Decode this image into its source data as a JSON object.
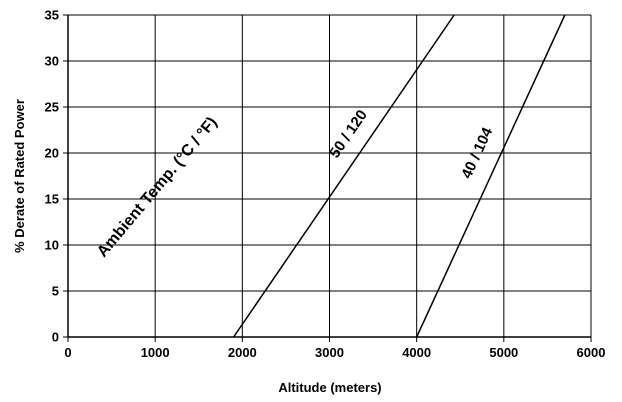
{
  "chart_data": {
    "type": "line",
    "title": "",
    "xlabel": "Altitude (meters)",
    "ylabel": "% Derate of Rated Power",
    "xlim": [
      0,
      6000
    ],
    "ylim": [
      0,
      35
    ],
    "xticks": [
      0,
      1000,
      2000,
      3000,
      4000,
      5000,
      6000
    ],
    "yticks": [
      0,
      5,
      10,
      15,
      20,
      25,
      30,
      35
    ],
    "grid": true,
    "legend": "none",
    "annotation": "Ambient Temp. (°C / °F)",
    "series": [
      {
        "name": "50 / 120",
        "x": [
          1900,
          4430
        ],
        "y": [
          0,
          35
        ]
      },
      {
        "name": "40 / 104",
        "x": [
          4000,
          5700
        ],
        "y": [
          0,
          35
        ]
      }
    ]
  }
}
